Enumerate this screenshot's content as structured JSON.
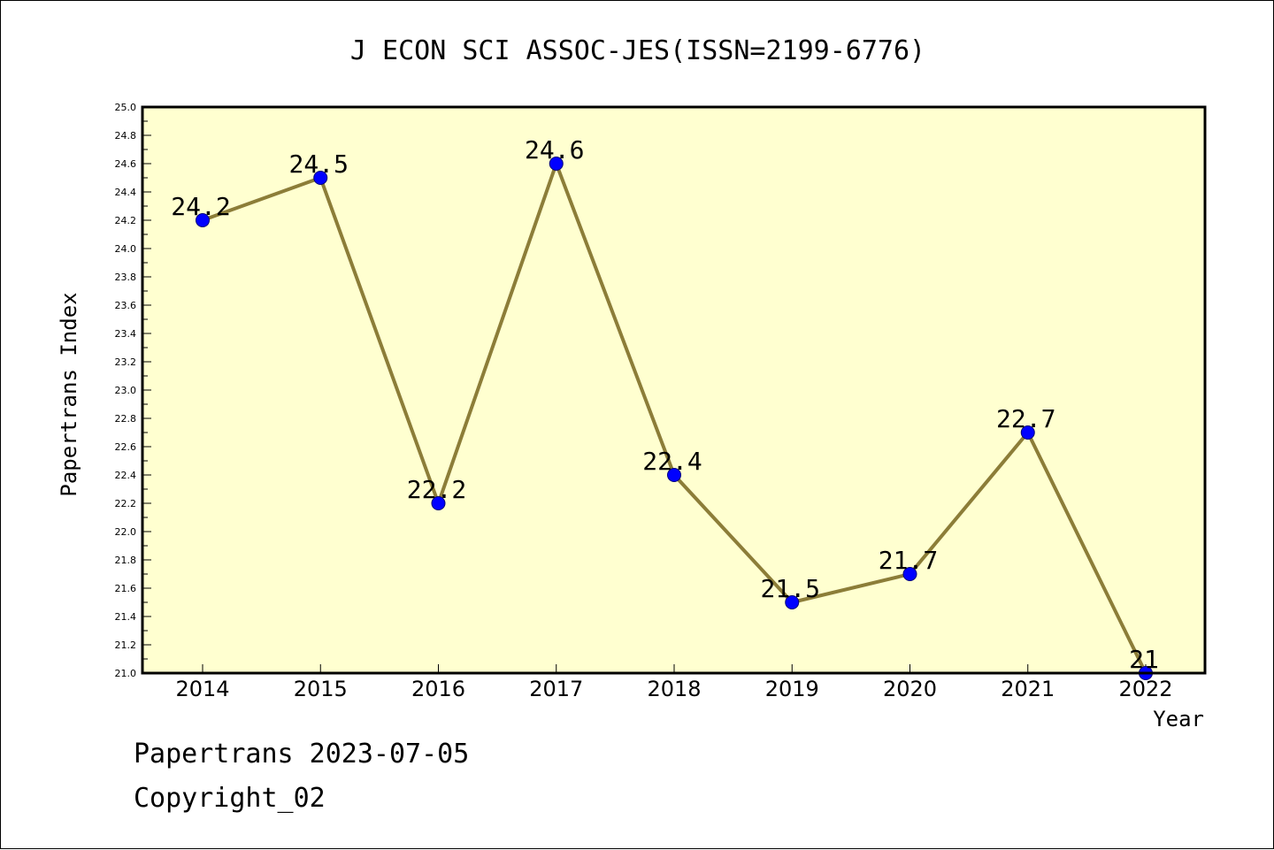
{
  "chart_data": {
    "type": "line",
    "title": "J ECON SCI ASSOC-JES(ISSN=2199-6776)",
    "xlabel": "Year",
    "ylabel": "Papertrans Index",
    "categories": [
      "2014",
      "2015",
      "2016",
      "2017",
      "2018",
      "2019",
      "2020",
      "2021",
      "2022"
    ],
    "series": [
      {
        "values": [
          24.2,
          24.5,
          22.2,
          24.6,
          22.4,
          21.5,
          21.7,
          22.7,
          21.0
        ],
        "point_labels": [
          "24.2",
          "24.5",
          "22.2",
          "24.6",
          "22.4",
          "21.5",
          "21.7",
          "22.7",
          "21"
        ]
      }
    ],
    "ylim": [
      21.0,
      25.0
    ],
    "yticks": [
      "21.0",
      "21.2",
      "21.4",
      "21.6",
      "21.8",
      "22.0",
      "22.2",
      "22.4",
      "22.6",
      "22.8",
      "23.0",
      "23.2",
      "23.4",
      "23.6",
      "23.8",
      "24.0",
      "24.2",
      "24.4",
      "24.6",
      "24.8",
      "25.0"
    ],
    "grid": false,
    "colors": {
      "plot_background": "#ffffd0",
      "line": "#8c7d38",
      "marker": "#0000ff",
      "marker_edge": "#00007a",
      "frame": "#000000"
    }
  },
  "footer": {
    "line1": "Papertrans 2023-07-05",
    "line2": "Copyright_02"
  }
}
